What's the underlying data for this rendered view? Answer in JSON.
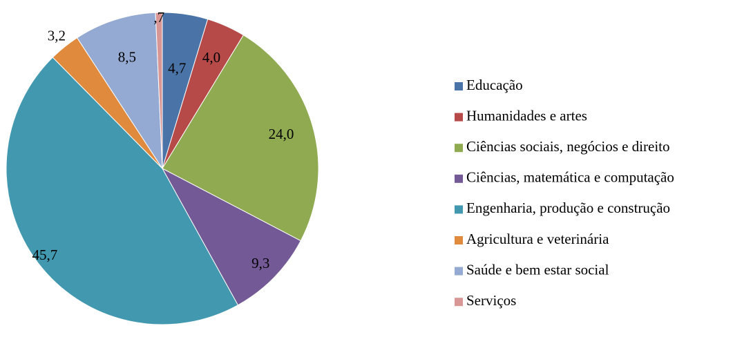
{
  "chart_data": {
    "type": "pie",
    "categories": [
      "Educação",
      "Humanidades e artes",
      "Ciências sociais, negócios e direito",
      "Ciências, matemática e computação",
      "Engenharia, produção e construção",
      "Agricultura e veterinária",
      "Saúde e bem estar social",
      "Serviços"
    ],
    "values": [
      4.7,
      4.0,
      24.0,
      9.3,
      45.7,
      3.2,
      8.5,
      0.7
    ],
    "value_labels": [
      "4,7",
      "4,0",
      "24,0",
      "9,3",
      "45,7",
      "3,2",
      "8,5",
      ",7"
    ],
    "colors": [
      "#4a74a8",
      "#b64a48",
      "#8faa50",
      "#735a96",
      "#4198af",
      "#e08a3e",
      "#94aad2",
      "#d89795"
    ],
    "legend": "right"
  }
}
